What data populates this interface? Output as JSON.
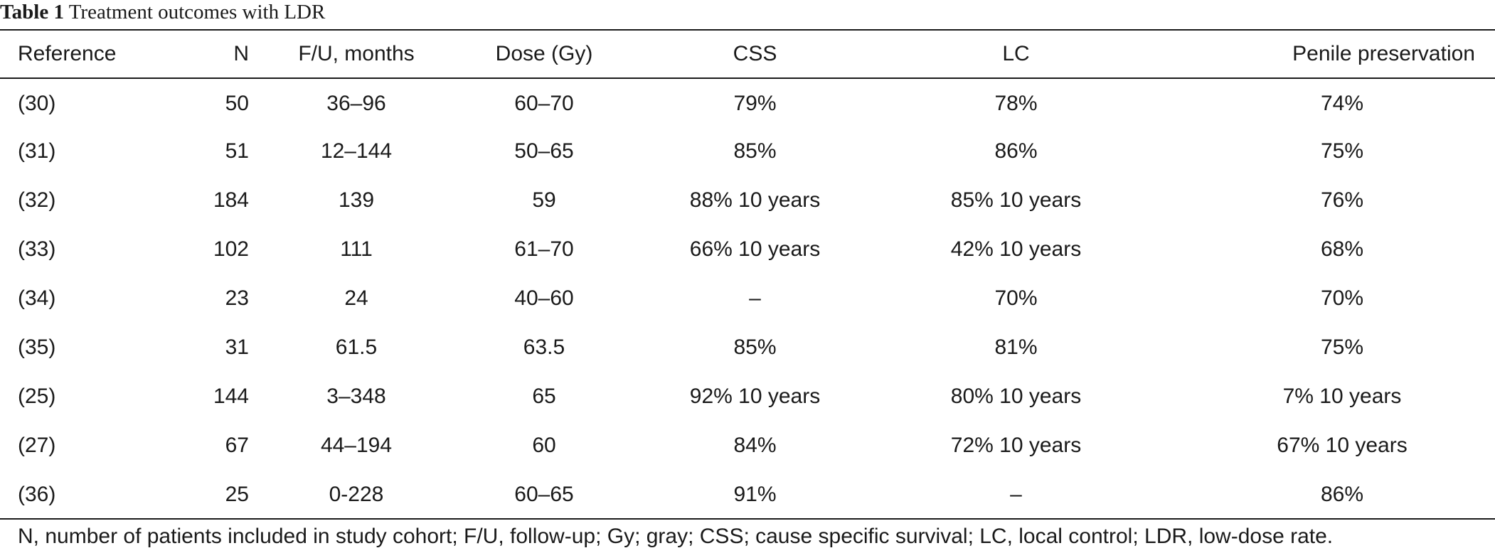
{
  "caption": {
    "label": "Table 1",
    "title": "Treatment outcomes with LDR"
  },
  "table": {
    "headers": [
      "Reference",
      "N",
      "F/U, months",
      "Dose (Gy)",
      "CSS",
      "LC",
      "Penile preservation"
    ],
    "rows": [
      [
        "(30)",
        "50",
        "36–96",
        "60–70",
        "79%",
        "78%",
        "74%"
      ],
      [
        "(31)",
        "51",
        "12–144",
        "50–65",
        "85%",
        "86%",
        "75%"
      ],
      [
        "(32)",
        "184",
        "139",
        "59",
        "88% 10 years",
        "85% 10 years",
        "76%"
      ],
      [
        "(33)",
        "102",
        "111",
        "61–70",
        "66% 10 years",
        "42% 10 years",
        "68%"
      ],
      [
        "(34)",
        "23",
        "24",
        "40–60",
        "–",
        "70%",
        "70%"
      ],
      [
        "(35)",
        "31",
        "61.5",
        "63.5",
        "85%",
        "81%",
        "75%"
      ],
      [
        "(25)",
        "144",
        "3–348",
        "65",
        "92% 10 years",
        "80% 10 years",
        "7% 10 years"
      ],
      [
        "(27)",
        "67",
        "44–194",
        "60",
        "84%",
        "72% 10 years",
        "67% 10 years"
      ],
      [
        "(36)",
        "25",
        "0-228",
        "60–65",
        "91%",
        "–",
        "86%"
      ]
    ]
  },
  "footnote": "N, number of patients included in study cohort; F/U, follow-up; Gy; gray; CSS; cause specific survival; LC, local control; LDR, low-dose rate."
}
